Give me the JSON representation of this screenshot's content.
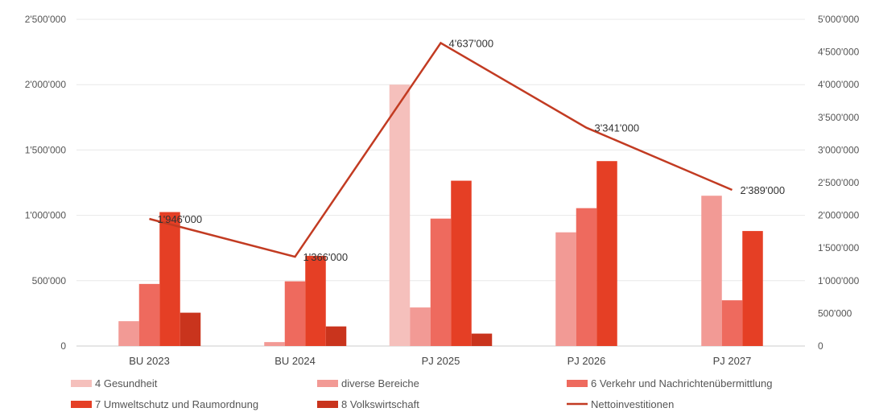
{
  "chart_data": {
    "type": "bar",
    "categories": [
      "BU 2023",
      "BU 2024",
      "PJ 2025",
      "PJ 2026",
      "PJ 2027"
    ],
    "series": [
      {
        "name": "4 Gesundheit",
        "type": "bar",
        "axis": "left",
        "color": "#f5c0bc",
        "values": [
          0,
          0,
          2000000,
          0,
          0
        ]
      },
      {
        "name": "diverse Bereiche",
        "type": "bar",
        "axis": "left",
        "color": "#f29a95",
        "values": [
          190000,
          30000,
          295000,
          870000,
          1150000
        ]
      },
      {
        "name": "6 Verkehr und Nachrichtenübermittlung",
        "type": "bar",
        "axis": "left",
        "color": "#ee6a5e",
        "values": [
          475000,
          495000,
          975000,
          1055000,
          350000
        ]
      },
      {
        "name": "7 Umweltschutz und Raumordnung",
        "type": "bar",
        "axis": "left",
        "color": "#e53f25",
        "values": [
          1025000,
          690000,
          1265000,
          1415000,
          880000
        ]
      },
      {
        "name": "8 Volkswirtschaft",
        "type": "bar",
        "axis": "left",
        "color": "#c9341d",
        "values": [
          255000,
          150000,
          95000,
          0,
          0
        ]
      },
      {
        "name": "Nettoinvestitionen",
        "type": "line",
        "axis": "right",
        "color": "#c23b22",
        "values": [
          1946000,
          1366000,
          4637000,
          3341000,
          2389000
        ],
        "labels": [
          "1'946'000",
          "1'366'000",
          "4'637'000",
          "3'341'000",
          "2'389'000"
        ]
      }
    ],
    "y_left": {
      "min": 0,
      "max": 2500000,
      "ticks": [
        "0",
        "500'000",
        "1'000'000",
        "1'500'000",
        "2'000'000",
        "2'500'000"
      ]
    },
    "y_right": {
      "min": 0,
      "max": 5000000,
      "ticks": [
        "0",
        "500'000",
        "1'000'000",
        "1'500'000",
        "2'000'000",
        "2'500'000",
        "3'000'000",
        "3'500'000",
        "4'000'000",
        "4'500'000",
        "5'000'000"
      ]
    },
    "grid": true,
    "legend": "bottom"
  }
}
